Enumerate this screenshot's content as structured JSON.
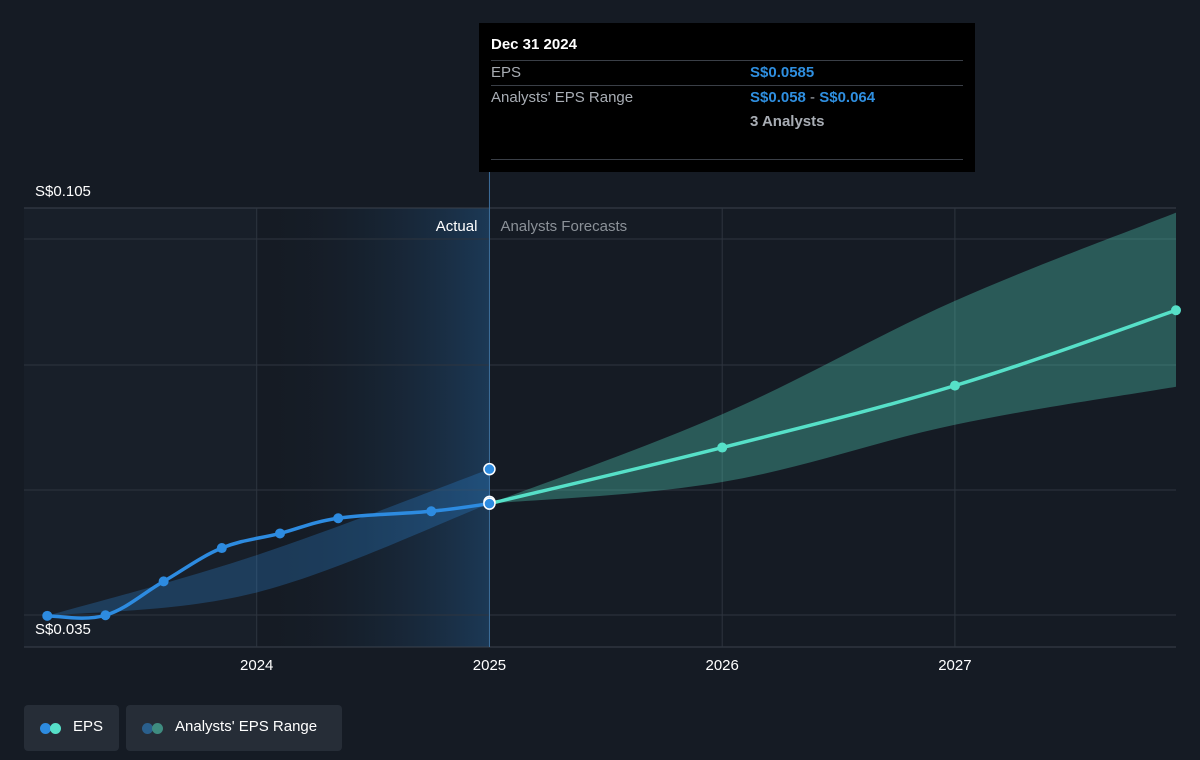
{
  "chart_data": {
    "type": "line",
    "y_axis": {
      "min_label": "S$0.035",
      "max_label": "S$0.105",
      "min_value": 0.035,
      "max_value": 0.105
    },
    "x_axis": {
      "ticks": [
        "2024",
        "2025",
        "2026",
        "2027"
      ],
      "tick_values": [
        2024.0,
        2025.0,
        2026.0,
        2027.0
      ],
      "range": [
        2023.0,
        2027.95
      ]
    },
    "grid": true,
    "regions": {
      "actual_label": "Actual",
      "forecast_label": "Analysts Forecasts",
      "divider_x": 2025.0
    },
    "series": [
      {
        "name": "EPS",
        "color": "#2d8be0",
        "points": [
          [
            2023.1,
            0.0352
          ],
          [
            2023.35,
            0.0353
          ],
          [
            2023.6,
            0.0411
          ],
          [
            2023.85,
            0.0468
          ],
          [
            2024.1,
            0.0493
          ],
          [
            2024.35,
            0.0519
          ],
          [
            2024.75,
            0.0531
          ],
          [
            2025.0,
            0.0544
          ]
        ]
      },
      {
        "name": "EPS",
        "color": "#56e0c8",
        "points": [
          [
            2025.0,
            0.0544
          ],
          [
            2026.0,
            0.064
          ],
          [
            2027.0,
            0.0746
          ],
          [
            2027.95,
            0.0875
          ]
        ]
      }
    ],
    "range_bands": [
      {
        "name": "Analysts' EPS Range",
        "color": "#2d8be0",
        "upper": [
          [
            2023.1,
            0.0352
          ],
          [
            2024.0,
            0.0456
          ],
          [
            2025.0,
            0.0603
          ]
        ],
        "lower": [
          [
            2023.1,
            0.0352
          ],
          [
            2024.0,
            0.0392
          ],
          [
            2025.0,
            0.0544
          ]
        ]
      },
      {
        "name": "Analysts' EPS Range",
        "color": "#56e0c8",
        "upper": [
          [
            2025.0,
            0.0544
          ],
          [
            2026.0,
            0.0697
          ],
          [
            2027.0,
            0.0891
          ],
          [
            2027.95,
            0.1042
          ]
        ],
        "lower": [
          [
            2025.0,
            0.0544
          ],
          [
            2026.0,
            0.0581
          ],
          [
            2027.0,
            0.0679
          ],
          [
            2027.95,
            0.0744
          ]
        ]
      }
    ]
  },
  "tooltip": {
    "date": "Dec 31 2024",
    "eps_label": "EPS",
    "eps_value": "S$0.0585",
    "range_label": "Analysts' EPS Range",
    "range_low": "S$0.058",
    "range_sep": " - ",
    "range_high": "S$0.064",
    "analysts": "3 Analysts"
  },
  "legend": {
    "eps_label": "EPS",
    "range_label": "Analysts' EPS Range",
    "eps_colors": [
      "#2d8be0",
      "#56e0c8"
    ],
    "range_colors": [
      "#2a5f8c",
      "#3f8c80"
    ]
  },
  "colors": {
    "background": "#151b24",
    "actual_highlight": "#1a2f45",
    "gridline": "#2e353f",
    "axis_text": "#ffffff",
    "label_muted": "#8b9198"
  }
}
